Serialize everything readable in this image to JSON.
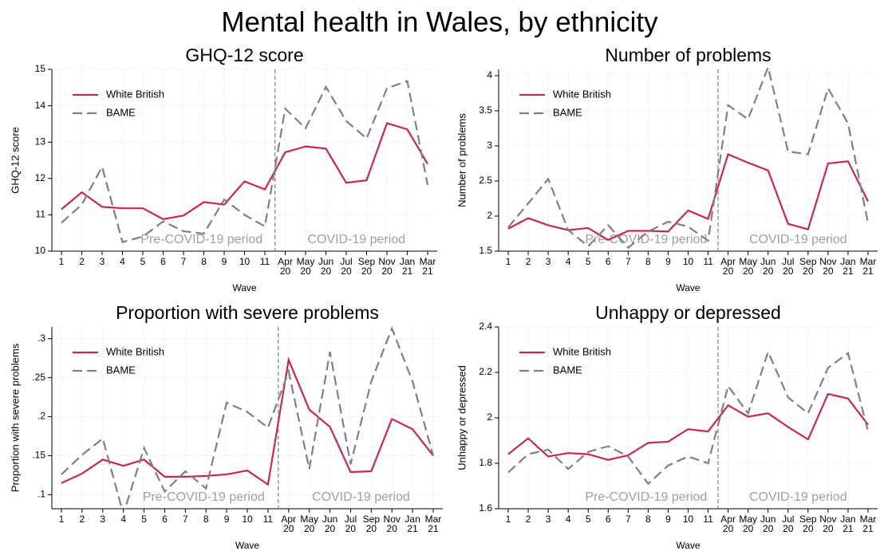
{
  "title": "Mental health in Wales, by ethnicity",
  "chart_data": [
    {
      "type": "line",
      "title": "GHQ-12 score",
      "x_label": "Wave",
      "y_label": "GHQ-12 score",
      "categories": [
        "1",
        "2",
        "3",
        "4",
        "5",
        "6",
        "7",
        "8",
        "9",
        "10",
        "11",
        "Apr 20",
        "May 20",
        "Jun 20",
        "Jul 20",
        "Sep 20",
        "Nov 20",
        "Jan 21",
        "Mar 21"
      ],
      "ylim": [
        10,
        15
      ],
      "yticks": [
        10,
        11,
        12,
        13,
        14,
        15
      ],
      "grid": true,
      "legend": "upper left",
      "annotations": [
        "Pre-COVID-19 period",
        "COVID-19 period"
      ],
      "series": [
        {
          "name": "White British",
          "color": "#c8284d",
          "style": "solid",
          "values": [
            11.15,
            11.62,
            11.22,
            11.18,
            11.18,
            10.88,
            10.98,
            11.35,
            11.28,
            11.92,
            11.7,
            12.72,
            12.88,
            12.82,
            11.88,
            11.95,
            13.52,
            13.35,
            12.4
          ]
        },
        {
          "name": "BAME",
          "color": "#808080",
          "style": "dashed",
          "values": [
            10.78,
            11.28,
            12.32,
            10.25,
            10.4,
            10.82,
            10.55,
            10.48,
            11.42,
            11.0,
            10.68,
            13.92,
            13.38,
            14.52,
            13.58,
            13.1,
            14.48,
            14.68,
            11.82
          ]
        }
      ]
    },
    {
      "type": "line",
      "title": "Number of problems",
      "x_label": "Wave",
      "y_label": "Number of problems",
      "categories": [
        "1",
        "2",
        "3",
        "4",
        "5",
        "6",
        "7",
        "8",
        "9",
        "10",
        "11",
        "Apr 20",
        "May 20",
        "Jun 20",
        "Jul 20",
        "Sep 20",
        "Nov 20",
        "Jan 21",
        "Mar 21"
      ],
      "ylim": [
        1.5,
        4.09
      ],
      "yticks": [
        1.5,
        2,
        2.5,
        3,
        3.5,
        4
      ],
      "grid": true,
      "legend": "upper left",
      "annotations": [
        "Pre-COVID-19 period",
        "COVID-19 period"
      ],
      "series": [
        {
          "name": "White British",
          "color": "#c8284d",
          "style": "solid",
          "values": [
            1.82,
            1.97,
            1.87,
            1.8,
            1.83,
            1.66,
            1.79,
            1.79,
            1.78,
            2.08,
            1.96,
            2.88,
            2.76,
            2.65,
            1.89,
            1.81,
            2.75,
            2.78,
            2.21
          ]
        },
        {
          "name": "BAME",
          "color": "#808080",
          "style": "dashed",
          "values": [
            1.84,
            2.18,
            2.53,
            1.8,
            1.57,
            1.87,
            1.55,
            1.78,
            1.92,
            1.85,
            1.65,
            3.58,
            3.38,
            4.12,
            2.92,
            2.88,
            3.82,
            3.32,
            1.9
          ]
        }
      ]
    },
    {
      "type": "line",
      "title": "Proportion with severe problems",
      "x_label": "Wave",
      "y_label": "Proportion with severe problems",
      "categories": [
        "1",
        "2",
        "3",
        "4",
        "5",
        "6",
        "7",
        "8",
        "9",
        "10",
        "11",
        "Apr 20",
        "May 20",
        "Jun 20",
        "Jul 20",
        "Sep 20",
        "Nov 20",
        "Jan 21",
        "Mar 21"
      ],
      "ylim": [
        0.082,
        0.315
      ],
      "yticks": [
        {
          "value": 0.1,
          "label": ".1"
        },
        {
          "value": 0.15,
          "label": ".15"
        },
        {
          "value": 0.2,
          "label": ".2"
        },
        {
          "value": 0.25,
          "label": ".25"
        },
        {
          "value": 0.3,
          "label": ".3"
        }
      ],
      "grid": true,
      "legend": "upper left",
      "annotations": [
        "Pre-COVID-19 period",
        "COVID-19 period"
      ],
      "series": [
        {
          "name": "White British",
          "color": "#c8284d",
          "style": "solid",
          "values": [
            0.115,
            0.127,
            0.145,
            0.137,
            0.145,
            0.123,
            0.123,
            0.124,
            0.126,
            0.131,
            0.113,
            0.273,
            0.209,
            0.187,
            0.129,
            0.13,
            0.197,
            0.184,
            0.15
          ]
        },
        {
          "name": "BAME",
          "color": "#808080",
          "style": "dashed",
          "values": [
            0.126,
            0.151,
            0.172,
            0.075,
            0.16,
            0.104,
            0.13,
            0.108,
            0.218,
            0.206,
            0.186,
            0.258,
            0.133,
            0.283,
            0.139,
            0.245,
            0.313,
            0.245,
            0.15
          ]
        }
      ]
    },
    {
      "type": "line",
      "title": "Unhappy or depressed",
      "x_label": "Wave",
      "y_label": "Unhappy or depressed",
      "categories": [
        "1",
        "2",
        "3",
        "4",
        "5",
        "6",
        "7",
        "8",
        "9",
        "10",
        "11",
        "Apr 20",
        "May 20",
        "Jun 20",
        "Jul 20",
        "Sep 20",
        "Nov 20",
        "Jan 21",
        "Mar 21"
      ],
      "ylim": [
        1.6,
        2.4
      ],
      "yticks": [
        1.6,
        1.8,
        2,
        2.2,
        2.4
      ],
      "grid": true,
      "legend": "upper left",
      "annotations": [
        "Pre-COVID-19 period",
        "COVID-19 period"
      ],
      "series": [
        {
          "name": "White British",
          "color": "#c8284d",
          "style": "solid",
          "values": [
            1.84,
            1.91,
            1.83,
            1.845,
            1.84,
            1.815,
            1.835,
            1.89,
            1.895,
            1.95,
            1.94,
            2.055,
            2.005,
            2.02,
            1.96,
            1.905,
            2.105,
            2.085,
            1.97
          ]
        },
        {
          "name": "BAME",
          "color": "#808080",
          "style": "dashed",
          "values": [
            1.76,
            1.84,
            1.86,
            1.775,
            1.85,
            1.875,
            1.83,
            1.71,
            1.79,
            1.83,
            1.8,
            2.14,
            2.02,
            2.29,
            2.09,
            2.02,
            2.22,
            2.285,
            1.94
          ]
        }
      ]
    }
  ]
}
